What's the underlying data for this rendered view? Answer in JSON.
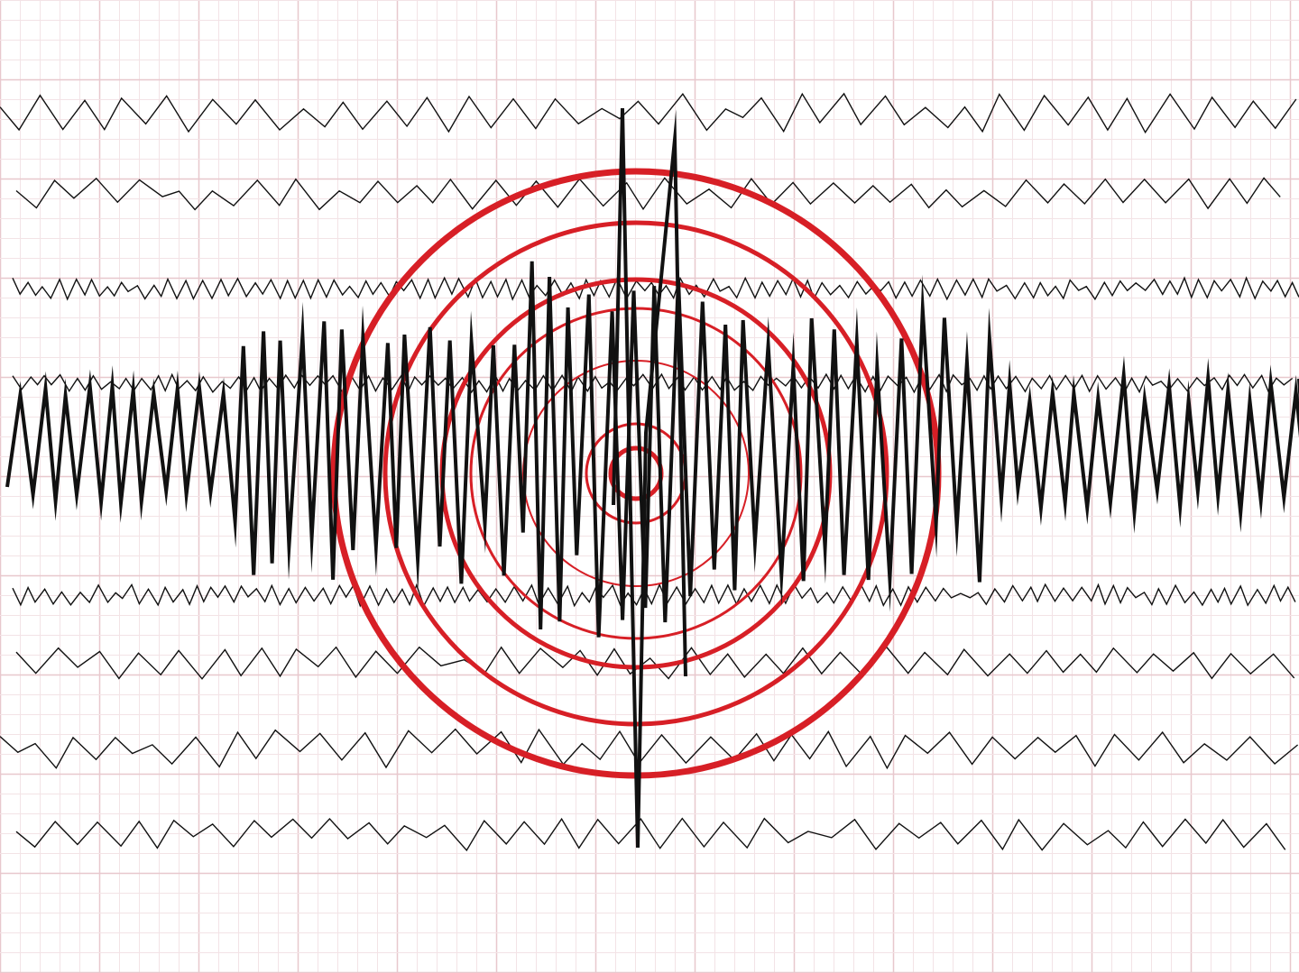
{
  "colors": {
    "background": "#ffffff",
    "grid_minor": "#f3e3e6",
    "grid_major": "#e8c8cd",
    "trace": "#111111",
    "rings": "#d71f26"
  },
  "icons": [
    "seismograph-trace",
    "epicenter-rings"
  ]
}
